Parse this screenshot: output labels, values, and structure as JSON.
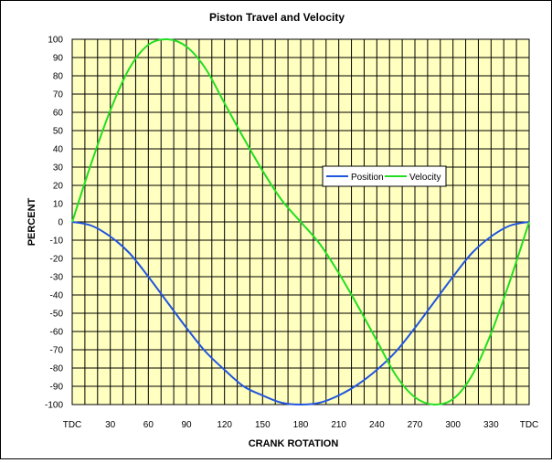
{
  "chart_data": {
    "type": "line",
    "title": "Piston Travel and Velocity",
    "xlabel": "CRANK ROTATION",
    "ylabel": "PERCENT",
    "xlim": [
      0,
      360
    ],
    "ylim": [
      -100,
      100
    ],
    "x_ticks": [
      {
        "value": 0,
        "label": "TDC"
      },
      {
        "value": 30,
        "label": "30"
      },
      {
        "value": 60,
        "label": "60"
      },
      {
        "value": 90,
        "label": "90"
      },
      {
        "value": 120,
        "label": "120"
      },
      {
        "value": 150,
        "label": "150"
      },
      {
        "value": 180,
        "label": "180"
      },
      {
        "value": 210,
        "label": "210"
      },
      {
        "value": 240,
        "label": "240"
      },
      {
        "value": 270,
        "label": "270"
      },
      {
        "value": 300,
        "label": "300"
      },
      {
        "value": 330,
        "label": "330"
      },
      {
        "value": 360,
        "label": "TDC"
      }
    ],
    "y_ticks": [
      100,
      90,
      80,
      70,
      60,
      50,
      40,
      30,
      20,
      10,
      0,
      -10,
      -20,
      -30,
      -40,
      -50,
      -60,
      -70,
      -80,
      -90,
      -100
    ],
    "grid": true,
    "plot_background": "#ffffc0",
    "legend_position": "center-right",
    "x": [
      0,
      15,
      30,
      45,
      60,
      75,
      90,
      105,
      120,
      135,
      150,
      165,
      180,
      195,
      210,
      225,
      240,
      255,
      270,
      285,
      300,
      315,
      330,
      345,
      360
    ],
    "series": [
      {
        "name": "Position",
        "color": "#2255dd",
        "values": [
          0,
          -2,
          -8,
          -17,
          -30,
          -44,
          -58,
          -71,
          -81,
          -90,
          -95,
          -99,
          -100,
          -99,
          -95,
          -89,
          -81,
          -71,
          -58,
          -44,
          -30,
          -17,
          -8,
          -2,
          0
        ]
      },
      {
        "name": "Velocity",
        "color": "#22dd22",
        "values": [
          0,
          32,
          61,
          84,
          97,
          100,
          96,
          84,
          65,
          46,
          28,
          12,
          0,
          -12,
          -28,
          -46,
          -65,
          -84,
          -96,
          -100,
          -97,
          -84,
          -61,
          -32,
          0
        ]
      }
    ]
  }
}
